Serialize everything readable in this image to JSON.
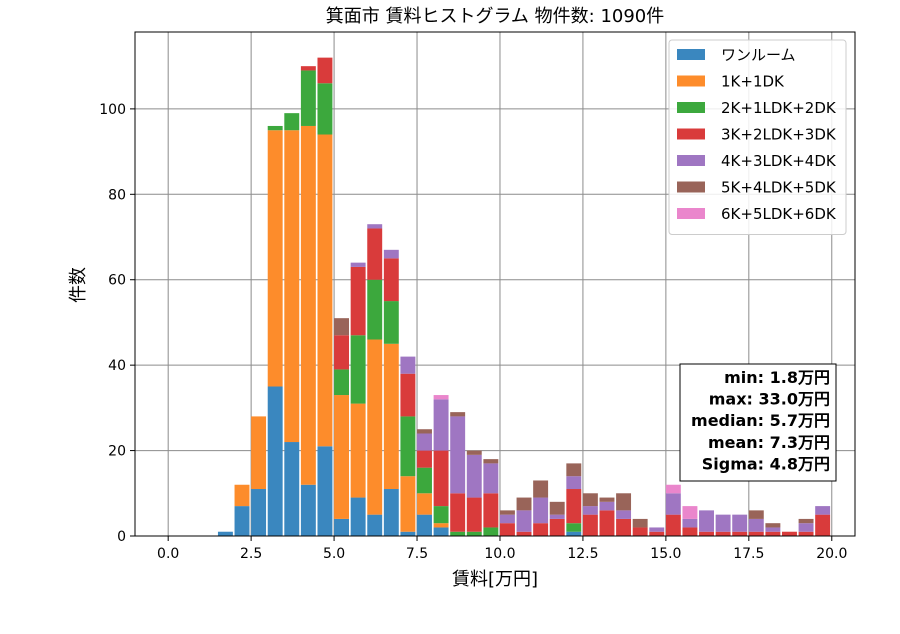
{
  "chart_data": {
    "type": "bar",
    "stacked": true,
    "title": "箕面市 賃料ヒストグラム  物件数: 1090件",
    "xlabel": "賃料[万円]",
    "ylabel": "件数",
    "xlim": [
      -1.0,
      20.7
    ],
    "ylim": [
      0,
      118
    ],
    "bin_width": 0.5,
    "xticks": [
      0.0,
      2.5,
      5.0,
      7.5,
      10.0,
      12.5,
      15.0,
      17.5,
      20.0
    ],
    "xtick_labels": [
      "0.0",
      "2.5",
      "5.0",
      "7.5",
      "10.0",
      "12.5",
      "15.0",
      "17.5",
      "20.0"
    ],
    "yticks": [
      0,
      20,
      40,
      60,
      80,
      100
    ],
    "ytick_labels": [
      "0",
      "20",
      "40",
      "60",
      "80",
      "100"
    ],
    "grid": true,
    "legend_position": "top-right",
    "bin_starts": [
      1.5,
      2.0,
      2.5,
      3.0,
      3.5,
      4.0,
      4.5,
      5.0,
      5.5,
      6.0,
      6.5,
      7.0,
      7.5,
      8.0,
      8.5,
      9.0,
      9.5,
      10.0,
      10.5,
      11.0,
      11.5,
      12.0,
      12.5,
      13.0,
      13.5,
      14.0,
      14.5,
      15.0,
      15.5,
      16.0,
      16.5,
      17.0,
      17.5,
      18.0,
      18.5,
      19.0,
      19.5
    ],
    "series": [
      {
        "name": "ワンルーム",
        "color": "#3a87bf",
        "values": [
          1,
          7,
          11,
          35,
          22,
          12,
          21,
          4,
          9,
          5,
          11,
          1,
          5,
          2,
          0,
          0,
          0,
          0,
          0,
          0,
          0,
          1,
          0,
          0,
          0,
          0,
          0,
          0,
          0,
          0,
          0,
          0,
          0,
          0,
          0,
          0,
          0
        ]
      },
      {
        "name": "1K+1DK",
        "color": "#fd8c2b",
        "values": [
          0,
          5,
          17,
          60,
          73,
          84,
          73,
          29,
          22,
          41,
          34,
          13,
          5,
          1,
          0,
          0,
          0,
          0,
          0,
          0,
          0,
          0,
          0,
          0,
          0,
          0,
          0,
          0,
          0,
          0,
          0,
          0,
          0,
          0,
          0,
          0,
          0
        ]
      },
      {
        "name": "2K+1LDK+2DK",
        "color": "#3ca83d",
        "values": [
          0,
          0,
          0,
          1,
          4,
          13,
          12,
          6,
          16,
          14,
          10,
          14,
          6,
          4,
          1,
          1,
          2,
          0,
          0,
          0,
          0,
          2,
          0,
          0,
          0,
          0,
          0,
          0,
          0,
          0,
          0,
          0,
          0,
          0,
          0,
          0,
          0
        ]
      },
      {
        "name": "3K+2LDK+3DK",
        "color": "#d93b3b",
        "values": [
          0,
          0,
          0,
          0,
          0,
          1,
          6,
          8,
          16,
          12,
          10,
          10,
          4,
          13,
          9,
          8,
          8,
          3,
          1,
          3,
          4,
          8,
          5,
          6,
          4,
          2,
          1,
          5,
          2,
          1,
          1,
          1,
          1,
          1,
          1,
          1,
          5
        ]
      },
      {
        "name": "4K+3LDK+4DK",
        "color": "#9f76c2",
        "values": [
          0,
          0,
          0,
          0,
          0,
          0,
          0,
          0,
          1,
          1,
          2,
          4,
          4,
          12,
          18,
          10,
          7,
          2,
          5,
          6,
          1,
          3,
          2,
          2,
          2,
          0,
          1,
          5,
          2,
          5,
          4,
          4,
          3,
          1,
          0,
          2,
          2
        ]
      },
      {
        "name": "5K+4LDK+5DK",
        "color": "#996459",
        "values": [
          0,
          0,
          0,
          0,
          0,
          0,
          0,
          4,
          0,
          0,
          0,
          0,
          1,
          0,
          1,
          1,
          1,
          1,
          3,
          4,
          3,
          3,
          3,
          1,
          4,
          2,
          0,
          0,
          0,
          0,
          0,
          0,
          2,
          1,
          0,
          1,
          0
        ]
      },
      {
        "name": "6K+5LDK+6DK",
        "color": "#ea86cc",
        "values": [
          0,
          0,
          0,
          0,
          0,
          0,
          0,
          0,
          0,
          0,
          0,
          0,
          0,
          1,
          0,
          0,
          0,
          0,
          0,
          0,
          0,
          0,
          0,
          0,
          0,
          0,
          0,
          2,
          3,
          0,
          0,
          0,
          0,
          0,
          0,
          0,
          0
        ]
      }
    ],
    "stats": [
      "min: 1.8万円",
      "max: 33.0万円",
      "median: 5.7万円",
      "mean: 7.3万円",
      "Sigma: 4.8万円"
    ]
  }
}
